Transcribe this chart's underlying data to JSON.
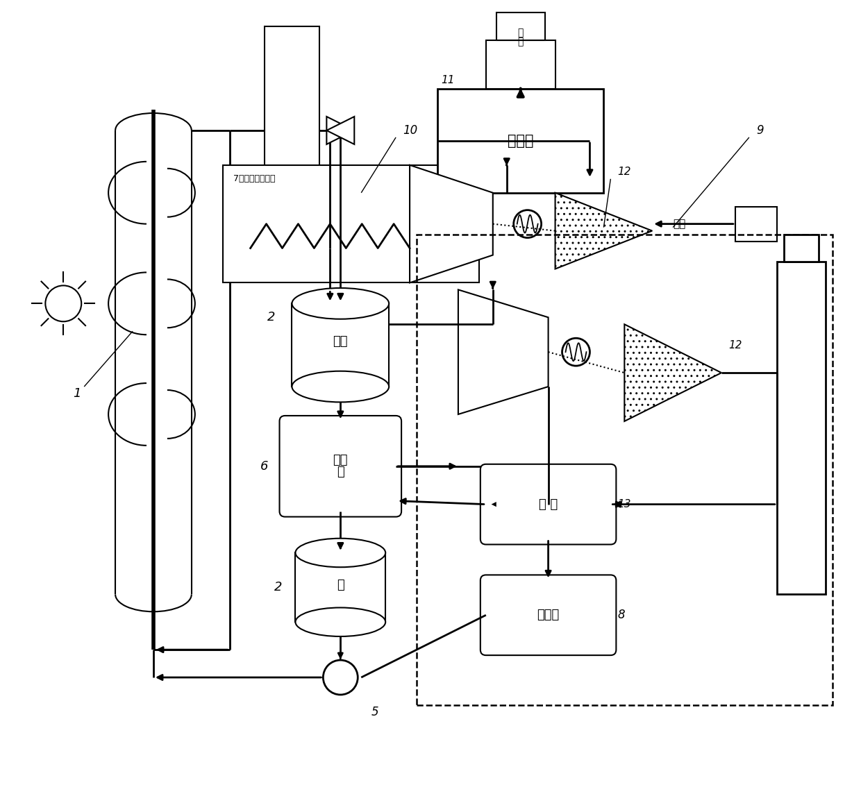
{
  "bg": "#ffffff",
  "lc": "#000000",
  "labels": {
    "fuel_gas": "燃\n气",
    "combustion": "燃烧室",
    "hot_tank": "热罐",
    "cold": "冷",
    "evap": "蒸发\n器",
    "cond": "冷凝器",
    "supp": "补 热",
    "air": "空气",
    "htf_heater": "7传热介质补热器"
  }
}
